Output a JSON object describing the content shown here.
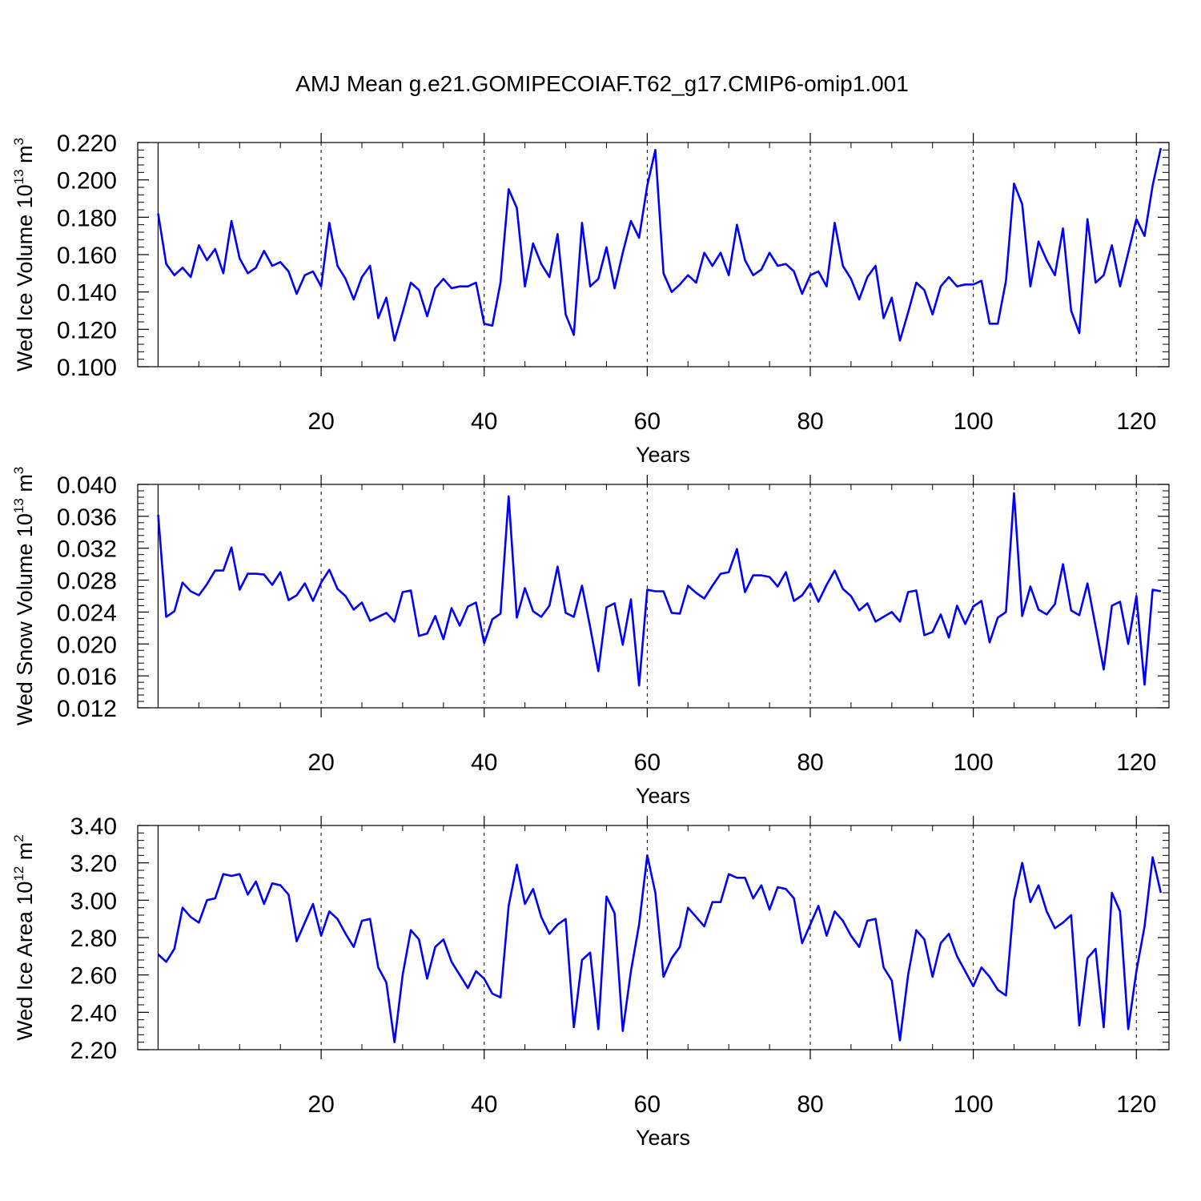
{
  "title": "AMJ Mean g.e21.GOMIPECOIAF.T62_g17.CMIP6-omip1.001",
  "line_color": "#0000ff",
  "chart_data": [
    {
      "type": "line",
      "xlabel": "Years",
      "ylabel_main": "Wed Ice Volume 10",
      "ylabel_sup_exp": "13",
      "ylabel_unit": " m",
      "ylabel_sup_unit": "3",
      "xlim": [
        -2.5,
        124
      ],
      "ylim": [
        0.1,
        0.22
      ],
      "x_ticks": [
        20,
        40,
        60,
        80,
        100,
        120
      ],
      "x_tick_labels": [
        "20",
        "40",
        "60",
        "80",
        "100",
        "120"
      ],
      "y_ticks": [
        0.1,
        0.12,
        0.14,
        0.16,
        0.18,
        0.2,
        0.22
      ],
      "y_tick_labels": [
        "0.100",
        "0.120",
        "0.140",
        "0.160",
        "0.180",
        "0.200",
        "0.220"
      ],
      "grid": "vertical dashed at major x ticks",
      "series": [
        {
          "x_start": 0,
          "values": [
            0.182,
            0.155,
            0.149,
            0.153,
            0.148,
            0.165,
            0.157,
            0.163,
            0.15,
            0.178,
            0.158,
            0.15,
            0.153,
            0.162,
            0.154,
            0.156,
            0.151,
            0.139,
            0.149,
            0.151,
            0.143,
            0.177,
            0.154,
            0.147,
            0.136,
            0.148,
            0.154,
            0.126,
            0.137,
            0.114,
            0.129,
            0.145,
            0.141,
            0.127,
            0.142,
            0.147,
            0.142,
            0.143,
            0.143,
            0.145,
            0.123,
            0.122,
            0.145,
            0.195,
            0.185,
            0.143,
            0.166,
            0.155,
            0.148,
            0.171,
            0.128,
            0.117,
            0.177,
            0.143,
            0.147,
            0.164,
            0.142,
            0.161,
            0.178,
            0.169,
            0.197,
            0.216,
            0.15,
            0.14,
            0.144,
            0.149,
            0.145,
            0.161,
            0.154,
            0.161,
            0.149,
            0.176,
            0.157,
            0.149,
            0.152,
            0.161,
            0.154,
            0.155,
            0.151,
            0.139,
            0.149,
            0.151,
            0.143,
            0.177,
            0.154,
            0.147,
            0.136,
            0.148,
            0.154,
            0.126,
            0.137,
            0.114,
            0.129,
            0.145,
            0.141,
            0.128,
            0.143,
            0.148,
            0.143,
            0.144,
            0.144,
            0.146,
            0.123,
            0.123,
            0.146,
            0.198,
            0.187,
            0.143,
            0.167,
            0.157,
            0.149,
            0.174,
            0.13,
            0.118,
            0.179,
            0.145,
            0.149,
            0.165,
            0.143,
            0.161,
            0.179,
            0.17,
            0.197,
            0.217
          ]
        }
      ]
    },
    {
      "type": "line",
      "xlabel": "Years",
      "ylabel_main": "Wed Snow Volume 10",
      "ylabel_sup_exp": "13",
      "ylabel_unit": " m",
      "ylabel_sup_unit": "3",
      "xlim": [
        -2.5,
        124
      ],
      "ylim": [
        0.012,
        0.04
      ],
      "x_ticks": [
        20,
        40,
        60,
        80,
        100,
        120
      ],
      "x_tick_labels": [
        "20",
        "40",
        "60",
        "80",
        "100",
        "120"
      ],
      "y_ticks": [
        0.012,
        0.016,
        0.02,
        0.024,
        0.028,
        0.032,
        0.036,
        0.04
      ],
      "y_tick_labels": [
        "0.012",
        "0.016",
        "0.020",
        "0.024",
        "0.028",
        "0.032",
        "0.036",
        "0.040"
      ],
      "grid": "vertical dashed at major x ticks",
      "series": [
        {
          "x_start": 0,
          "values": [
            0.0362,
            0.0234,
            0.0241,
            0.0277,
            0.0266,
            0.0261,
            0.0275,
            0.0292,
            0.0292,
            0.0321,
            0.0268,
            0.0288,
            0.0288,
            0.0287,
            0.0274,
            0.029,
            0.0255,
            0.0261,
            0.0276,
            0.0254,
            0.0277,
            0.0293,
            0.0269,
            0.026,
            0.0243,
            0.0252,
            0.0229,
            0.0234,
            0.0239,
            0.0228,
            0.0265,
            0.0267,
            0.021,
            0.0213,
            0.0235,
            0.0206,
            0.0245,
            0.0223,
            0.0247,
            0.0252,
            0.0201,
            0.0231,
            0.0238,
            0.0385,
            0.0233,
            0.027,
            0.0241,
            0.0234,
            0.0248,
            0.0297,
            0.0239,
            0.0234,
            0.0273,
            0.0221,
            0.0166,
            0.0246,
            0.0251,
            0.0199,
            0.0256,
            0.0148,
            0.0268,
            0.0266,
            0.0266,
            0.0239,
            0.0238,
            0.0273,
            0.0264,
            0.0257,
            0.0273,
            0.0288,
            0.029,
            0.0319,
            0.0265,
            0.0286,
            0.0286,
            0.0284,
            0.0272,
            0.029,
            0.0254,
            0.0261,
            0.0276,
            0.0253,
            0.0274,
            0.0292,
            0.0269,
            0.026,
            0.0242,
            0.0251,
            0.0228,
            0.0234,
            0.024,
            0.0228,
            0.0265,
            0.0267,
            0.0211,
            0.0215,
            0.0237,
            0.0208,
            0.0248,
            0.0225,
            0.0247,
            0.0254,
            0.0202,
            0.0233,
            0.024,
            0.0389,
            0.0235,
            0.0272,
            0.0243,
            0.0237,
            0.025,
            0.03,
            0.0242,
            0.0236,
            0.0276,
            0.0222,
            0.0168,
            0.0248,
            0.0253,
            0.02,
            0.026,
            0.0149,
            0.0268,
            0.0266
          ]
        }
      ]
    },
    {
      "type": "line",
      "xlabel": "Years",
      "ylabel_main": "Wed Ice Area 10",
      "ylabel_sup_exp": "12",
      "ylabel_unit": " m",
      "ylabel_sup_unit": "2",
      "xlim": [
        -2.5,
        124
      ],
      "ylim": [
        2.2,
        3.4
      ],
      "x_ticks": [
        20,
        40,
        60,
        80,
        100,
        120
      ],
      "x_tick_labels": [
        "20",
        "40",
        "60",
        "80",
        "100",
        "120"
      ],
      "y_ticks": [
        2.2,
        2.4,
        2.6,
        2.8,
        3.0,
        3.2,
        3.4
      ],
      "y_tick_labels": [
        "2.20",
        "2.40",
        "2.60",
        "2.80",
        "3.00",
        "3.20",
        "3.40"
      ],
      "grid": "vertical dashed at major x ticks",
      "series": [
        {
          "x_start": 0,
          "values": [
            2.71,
            2.67,
            2.74,
            2.96,
            2.91,
            2.88,
            3.0,
            3.01,
            3.14,
            3.13,
            3.14,
            3.03,
            3.1,
            2.98,
            3.09,
            3.08,
            3.03,
            2.78,
            2.88,
            2.98,
            2.81,
            2.94,
            2.9,
            2.82,
            2.75,
            2.89,
            2.9,
            2.64,
            2.56,
            2.24,
            2.6,
            2.84,
            2.79,
            2.58,
            2.75,
            2.79,
            2.67,
            2.6,
            2.53,
            2.62,
            2.58,
            2.5,
            2.48,
            2.97,
            3.19,
            2.98,
            3.06,
            2.91,
            2.82,
            2.87,
            2.9,
            2.32,
            2.68,
            2.72,
            2.31,
            3.02,
            2.93,
            2.3,
            2.62,
            2.87,
            3.24,
            3.04,
            2.59,
            2.69,
            2.75,
            2.96,
            2.91,
            2.86,
            2.99,
            2.99,
            3.14,
            3.12,
            3.12,
            3.01,
            3.08,
            2.95,
            3.07,
            3.06,
            3.01,
            2.77,
            2.87,
            2.97,
            2.81,
            2.94,
            2.89,
            2.81,
            2.75,
            2.89,
            2.9,
            2.64,
            2.57,
            2.25,
            2.6,
            2.84,
            2.79,
            2.59,
            2.77,
            2.82,
            2.7,
            2.62,
            2.54,
            2.64,
            2.59,
            2.52,
            2.49,
            3.0,
            3.2,
            2.99,
            3.08,
            2.94,
            2.85,
            2.88,
            2.92,
            2.33,
            2.69,
            2.74,
            2.32,
            3.04,
            2.94,
            2.31,
            2.62,
            2.86,
            3.23,
            3.04
          ]
        }
      ]
    }
  ]
}
